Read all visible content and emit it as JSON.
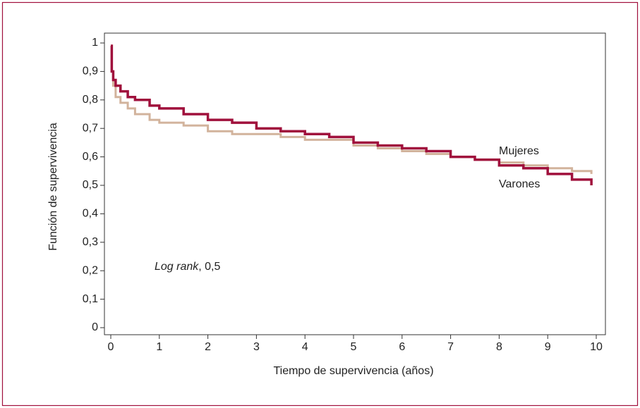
{
  "chart_data": {
    "type": "step",
    "xlabel": "Tiempo de supervivencia (años)",
    "ylabel": "Función de supervivencia",
    "annotation": {
      "italic": "Log rank",
      "text": ", 0,5"
    },
    "xlim": [
      0,
      10
    ],
    "ylim": [
      0,
      1
    ],
    "xticks": [
      0,
      1,
      2,
      3,
      4,
      5,
      6,
      7,
      8,
      9,
      10
    ],
    "yticks": [
      0,
      {
        "value": 0.1,
        "label": "0,1"
      },
      {
        "value": 0.2,
        "label": "0,2"
      },
      {
        "value": 0.3,
        "label": "0,3"
      },
      {
        "value": 0.4,
        "label": "0,4"
      },
      {
        "value": 0.5,
        "label": "0,5"
      },
      {
        "value": 0.6,
        "label": "0,6"
      },
      {
        "value": 0.7,
        "label": "0,7"
      },
      {
        "value": 0.8,
        "label": "0,8"
      },
      {
        "value": 0.9,
        "label": "0,9"
      },
      1
    ],
    "series": [
      {
        "name": "Mujeres",
        "color": "#d2b39c",
        "x": [
          0,
          0.02,
          0.05,
          0.1,
          0.2,
          0.35,
          0.5,
          0.8,
          1,
          1.5,
          2,
          2.5,
          3,
          3.5,
          4,
          4.5,
          5,
          5.5,
          6,
          6.5,
          7,
          7.5,
          8,
          8.5,
          9,
          9.5,
          9.9
        ],
        "values": [
          0.99,
          0.9,
          0.85,
          0.81,
          0.79,
          0.77,
          0.75,
          0.73,
          0.72,
          0.71,
          0.69,
          0.68,
          0.68,
          0.67,
          0.66,
          0.66,
          0.64,
          0.63,
          0.62,
          0.61,
          0.6,
          0.59,
          0.58,
          0.57,
          0.56,
          0.55,
          0.54
        ]
      },
      {
        "name": "Varones",
        "color": "#a0103c",
        "x": [
          0,
          0.02,
          0.05,
          0.1,
          0.2,
          0.35,
          0.5,
          0.8,
          1,
          1.5,
          2,
          2.5,
          3,
          3.5,
          4,
          4.5,
          5,
          5.5,
          6,
          6.5,
          7,
          7.5,
          8,
          8.5,
          9,
          9.5,
          9.9
        ],
        "values": [
          0.99,
          0.9,
          0.87,
          0.85,
          0.83,
          0.81,
          0.8,
          0.78,
          0.77,
          0.75,
          0.73,
          0.72,
          0.7,
          0.69,
          0.68,
          0.67,
          0.65,
          0.64,
          0.63,
          0.62,
          0.6,
          0.59,
          0.57,
          0.56,
          0.54,
          0.52,
          0.5
        ]
      }
    ]
  }
}
